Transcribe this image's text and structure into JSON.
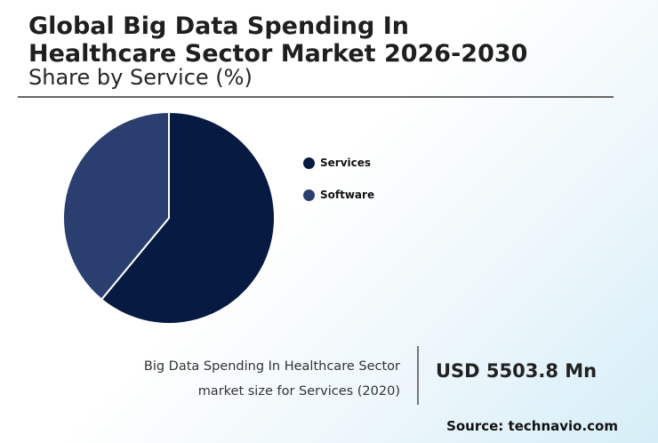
{
  "header": {
    "title_line1": "Global Big Data Spending In",
    "title_line2": "Healthcare Sector Market 2026-2030",
    "subtitle": "Share by Service (%)"
  },
  "chart_data": {
    "type": "pie",
    "title": "Share by Service (%)",
    "categories": [
      "Services",
      "Software"
    ],
    "values": [
      61,
      39
    ],
    "colors": [
      "#071a42",
      "#2a3f70"
    ],
    "legend_position": "right"
  },
  "footer": {
    "caption_line1": "Big Data Spending In Healthcare Sector",
    "caption_line2": "market size for Services (2020)",
    "value": "USD 5503.8 Mn",
    "source": "Source: technavio.com"
  }
}
